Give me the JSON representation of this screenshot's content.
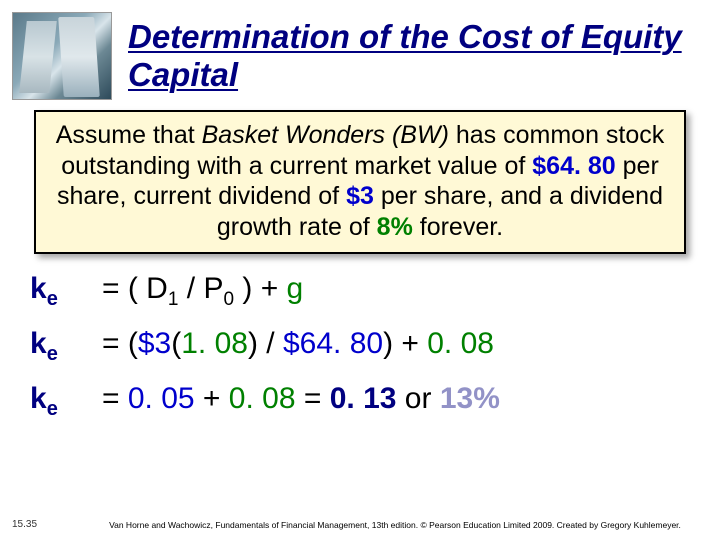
{
  "title": "Determination of the Cost of Equity Capital",
  "assumption": {
    "pre": "Assume that ",
    "company": "Basket Wonders (BW)",
    "mid1": " has common stock outstanding with a current market value of ",
    "price": "$64. 80",
    "mid2": " per share, current dividend of ",
    "div": "$3",
    "mid3": " per share, and a dividend growth rate of ",
    "growth": "8%",
    "tail": " forever."
  },
  "eq1": {
    "lhs_main": "k",
    "lhs_sub": "e",
    "text_a": "= ( D",
    "sub1": "1",
    "text_b": " / P",
    "sub2": "0",
    "text_c": " ) + ",
    "g": "g"
  },
  "eq2": {
    "text_a": "= (",
    "d": "$3",
    "text_b": "(",
    "gf": "1. 08",
    "text_c": ") / ",
    "p": "$64. 80",
    "text_d": ") + ",
    "gv": "0. 08"
  },
  "eq3": {
    "text_a": "= ",
    "a": "0. 05",
    "plus": " + ",
    "b": "0. 08",
    "eq": " = ",
    "r1": "0. 13",
    "or": " or ",
    "r2": "13%"
  },
  "slide_num": "15.35",
  "footer": "Van Horne and Wachowicz, Fundamentals of Financial Management, 13th edition. © Pearson Education Limited 2009. Created by Gregory Kuhlemeyer."
}
